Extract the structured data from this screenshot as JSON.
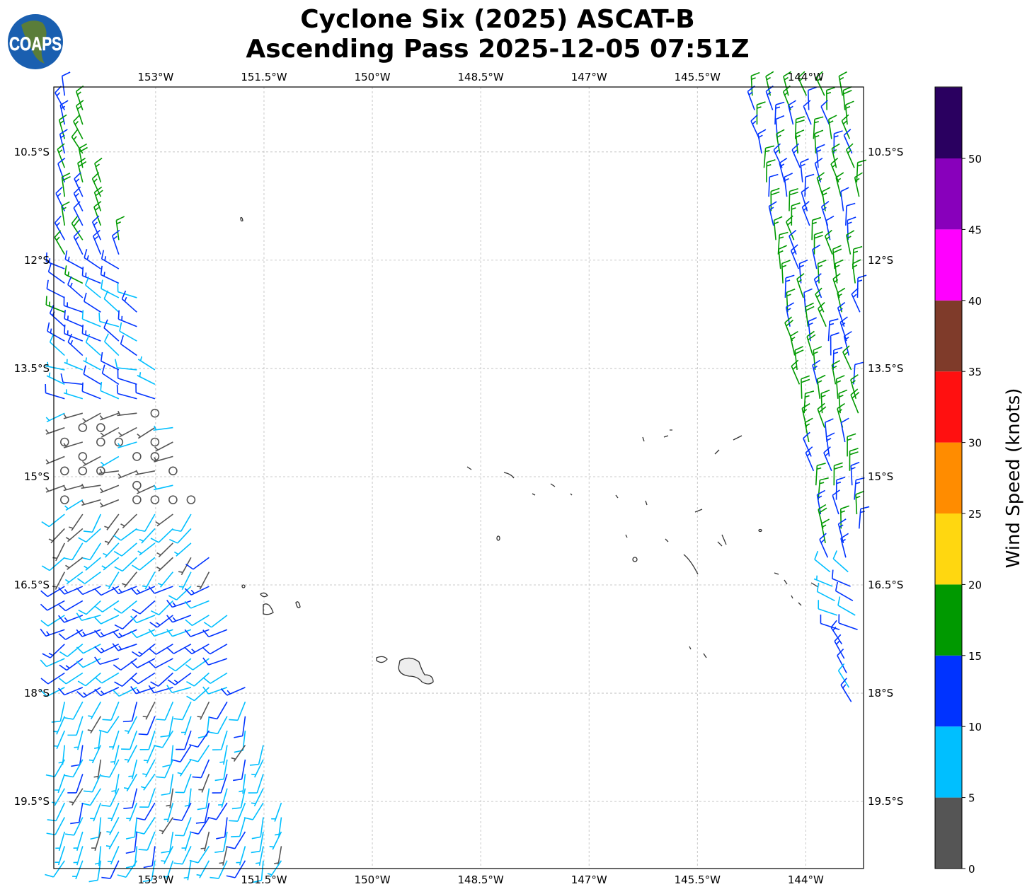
{
  "title": {
    "line1": "Cyclone Six (2025) ASCAT-B",
    "line2": "Ascending Pass 2025-12-05 07:51Z"
  },
  "logo": {
    "text": "COAPS"
  },
  "chart_data": {
    "type": "wind-barb map",
    "lon_ticks": [
      {
        "value": -153,
        "label": "153°W"
      },
      {
        "value": -151.5,
        "label": "151.5°W"
      },
      {
        "value": -150,
        "label": "150°W"
      },
      {
        "value": -148.5,
        "label": "148.5°W"
      },
      {
        "value": -147,
        "label": "147°W"
      },
      {
        "value": -145.5,
        "label": "145.5°W"
      },
      {
        "value": -144,
        "label": "144°W"
      }
    ],
    "lat_ticks": [
      {
        "value": -10.5,
        "label": "10.5°S"
      },
      {
        "value": -12,
        "label": "12°S"
      },
      {
        "value": -13.5,
        "label": "13.5°S"
      },
      {
        "value": -15,
        "label": "15°S"
      },
      {
        "value": -16.5,
        "label": "16.5°S"
      },
      {
        "value": -18,
        "label": "18°S"
      },
      {
        "value": -19.5,
        "label": "19.5°S"
      }
    ],
    "lon_range": [
      -154.41,
      -143.2
    ],
    "lat_range": [
      -20.43,
      -9.6
    ],
    "grid": true,
    "colorbar": {
      "label": "Wind Speed (knots)",
      "ticks": [
        "0",
        "5",
        "10",
        "15",
        "20",
        "25",
        "30",
        "35",
        "40",
        "45",
        "50"
      ],
      "bins": [
        {
          "min": 0,
          "max": 5,
          "color": "#555555"
        },
        {
          "min": 5,
          "max": 10,
          "color": "#00bfff"
        },
        {
          "min": 10,
          "max": 15,
          "color": "#0033ff"
        },
        {
          "min": 15,
          "max": 20,
          "color": "#009900"
        },
        {
          "min": 20,
          "max": 25,
          "color": "#ffd710"
        },
        {
          "min": 25,
          "max": 30,
          "color": "#ff8c00"
        },
        {
          "min": 30,
          "max": 35,
          "color": "#ff1010"
        },
        {
          "min": 35,
          "max": 40,
          "color": "#7f3b2a"
        },
        {
          "min": 40,
          "max": 45,
          "color": "#ff00ff"
        },
        {
          "min": 45,
          "max": 50,
          "color": "#8800bb"
        },
        {
          "min": 50,
          "max": 55,
          "color": "#2a0060"
        }
      ]
    },
    "swaths": [
      {
        "name": "west",
        "edge_lon_top": -154.08,
        "edge_lon_bottom": -151.0,
        "side": "west",
        "bands": [
          {
            "lat": [
              -9.6,
              -12.0
            ],
            "speed": 15,
            "dir": 340
          },
          {
            "lat": [
              -12.0,
              -13.4
            ],
            "speed": 12,
            "dir": 300
          },
          {
            "lat": [
              -13.4,
              -14.0
            ],
            "speed": 9,
            "dir": 290
          },
          {
            "lat": [
              -14.0,
              -15.4
            ],
            "speed": 3,
            "dir": 250
          },
          {
            "lat": [
              -15.4,
              -16.5
            ],
            "speed": 7,
            "dir": 220
          },
          {
            "lat": [
              -16.5,
              -18.0
            ],
            "speed": 11,
            "dir": 240
          },
          {
            "lat": [
              -18.0,
              -20.43
            ],
            "speed": 8,
            "dir": 200
          }
        ]
      },
      {
        "name": "east",
        "edge_lon_top": -144.86,
        "edge_lon_bottom": -143.44,
        "side": "east",
        "lat_bottom": -18.3,
        "bands": [
          {
            "lat": [
              -9.6,
              -16.3
            ],
            "speed": 15,
            "dir": 350
          },
          {
            "lat": [
              -16.3,
              -17.2
            ],
            "speed": 9,
            "dir": 300
          },
          {
            "lat": [
              -17.2,
              -18.3
            ],
            "speed": 12,
            "dir": 330
          }
        ]
      }
    ]
  }
}
